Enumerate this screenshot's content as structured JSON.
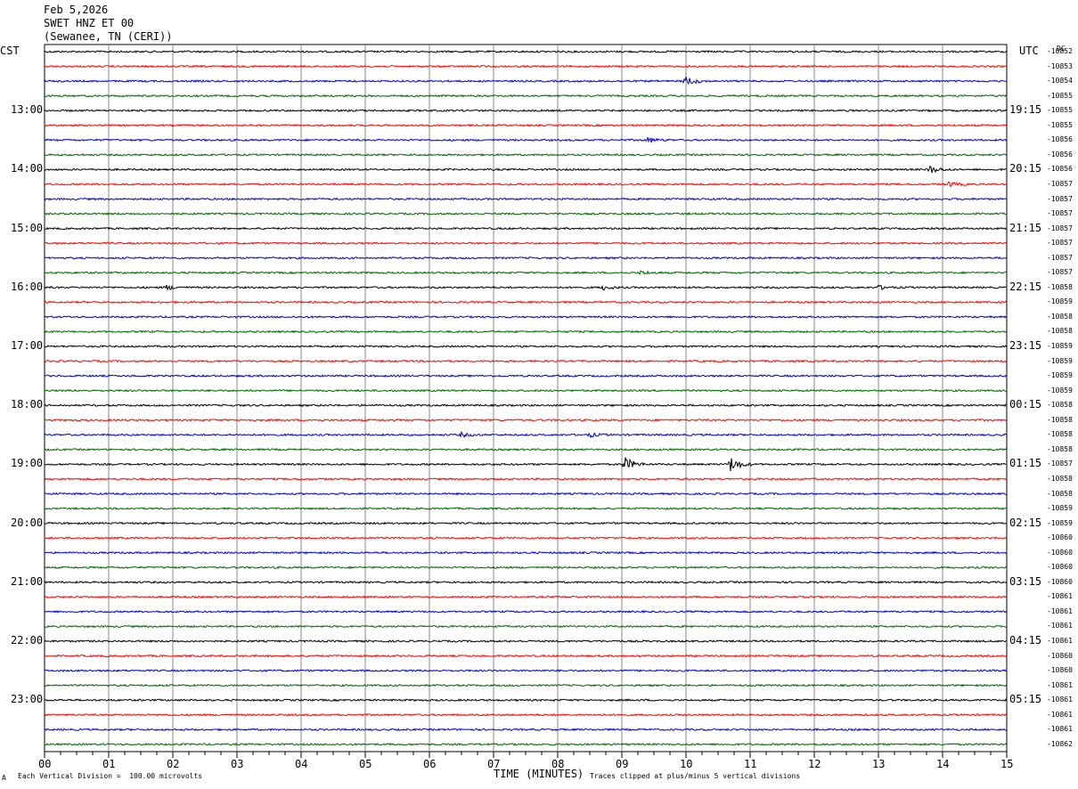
{
  "header": {
    "date": "Feb 5,2026",
    "station": "SWET HNZ ET 00",
    "location": "(Sewanee, TN (CERI))"
  },
  "left_tz": "CST",
  "right_tz": "UTC",
  "dc_label": "DC",
  "footer": {
    "scale": "Each Vertical Division =  100.00 microvolts",
    "clip": "Traces clipped at plus/minus 5 vertical divisions",
    "mark": "A"
  },
  "colors": {
    "black": "#000000",
    "red": "#ff0000",
    "blue": "#0000cc",
    "green": "#006600",
    "grid": "#888888"
  },
  "chart_data": {
    "type": "line",
    "title": "SWET HNZ ET 00",
    "xlabel": "TIME (MINUTES)",
    "ylabel": "",
    "x_ticks": [
      "00",
      "01",
      "02",
      "03",
      "04",
      "05",
      "06",
      "07",
      "08",
      "09",
      "10",
      "11",
      "12",
      "13",
      "14",
      "15"
    ],
    "xlim": [
      0,
      15
    ],
    "trace_color_cycle": [
      "black",
      "red",
      "blue",
      "green"
    ],
    "hour_labels_left": [
      "13:00",
      "14:00",
      "15:00",
      "16:00",
      "17:00",
      "18:00",
      "19:00",
      "20:00",
      "21:00",
      "22:00",
      "23:00"
    ],
    "hour_labels_right": [
      "19:15",
      "20:15",
      "21:15",
      "22:15",
      "23:15",
      "00:15",
      "01:15",
      "02:15",
      "03:15",
      "04:15",
      "05:15"
    ],
    "dc_offsets": [
      "-10852",
      "-10853",
      "-10854",
      "-10855",
      "-10855",
      "-10855",
      "-10856",
      "-10856",
      "-10856",
      "-10857",
      "-10857",
      "-10857",
      "-10857",
      "-10857",
      "-10857",
      "-10857",
      "-10858",
      "-10859",
      "-10858",
      "-10858",
      "-10859",
      "-10859",
      "-10859",
      "-10859",
      "-10858",
      "-10858",
      "-10858",
      "-10858",
      "-10857",
      "-10858",
      "-10858",
      "-10859",
      "-10859",
      "-10860",
      "-10860",
      "-10860",
      "-10860",
      "-10861",
      "-10861",
      "-10861",
      "-10861",
      "-10860",
      "-10860",
      "-10861",
      "-10861",
      "-10861",
      "-10861",
      "-10862"
    ],
    "events": [
      {
        "trace": 2,
        "minute": 10.0,
        "amp": 0.6
      },
      {
        "trace": 6,
        "minute": 9.4,
        "amp": 0.35
      },
      {
        "trace": 8,
        "minute": 13.8,
        "amp": 0.5
      },
      {
        "trace": 9,
        "minute": 14.1,
        "amp": 0.3
      },
      {
        "trace": 15,
        "minute": 9.3,
        "amp": 0.25
      },
      {
        "trace": 16,
        "minute": 1.9,
        "amp": 0.3
      },
      {
        "trace": 16,
        "minute": 8.7,
        "amp": 0.3
      },
      {
        "trace": 16,
        "minute": 13.0,
        "amp": 0.25
      },
      {
        "trace": 26,
        "minute": 6.5,
        "amp": 0.25
      },
      {
        "trace": 26,
        "minute": 8.5,
        "amp": 0.25
      },
      {
        "trace": 28,
        "minute": 9.05,
        "amp": 0.9
      },
      {
        "trace": 28,
        "minute": 10.7,
        "amp": 1.0
      }
    ]
  }
}
